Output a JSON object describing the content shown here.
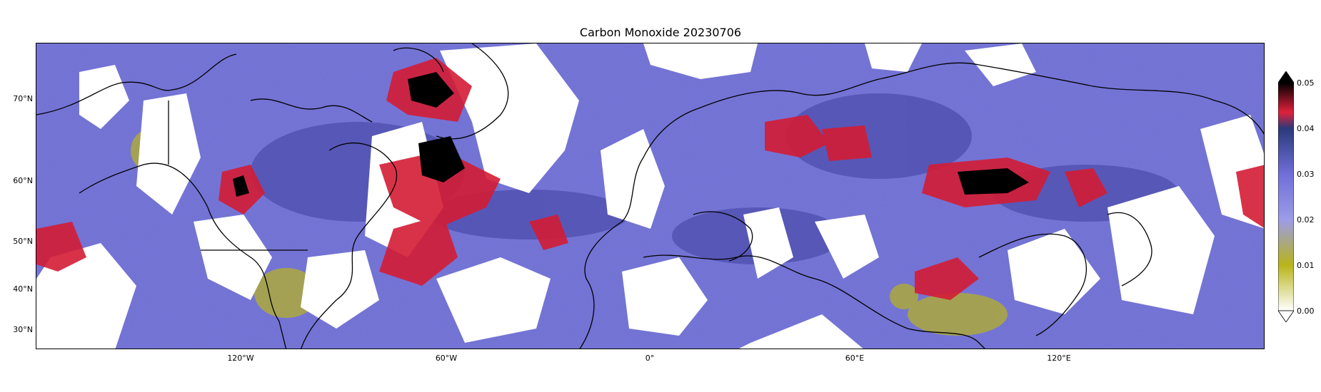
{
  "title": "Carbon Monoxide 20230706",
  "lat_labels": [
    "70°N",
    "60°N",
    "50°N",
    "40°N",
    "30°N"
  ],
  "lon_labels": [
    "120°W",
    "60°W",
    "0°",
    "60°E",
    "120°E"
  ],
  "colorbar": {
    "ticks": [
      "0.00",
      "0.01",
      "0.02",
      "0.03",
      "0.04",
      "0.05"
    ],
    "stops": [
      "#ffffff",
      "#b8b41a",
      "#7070e6",
      "#2a3a7a",
      "#e0203a",
      "#000000"
    ],
    "extend": "both"
  },
  "colors": {
    "background_field": "#6f6fd8",
    "low_field": "#b4b028",
    "high_field": "#d41c35",
    "extreme_field": "#000000",
    "cloud_gap": "#ffffff",
    "coastline": "#000000"
  }
}
